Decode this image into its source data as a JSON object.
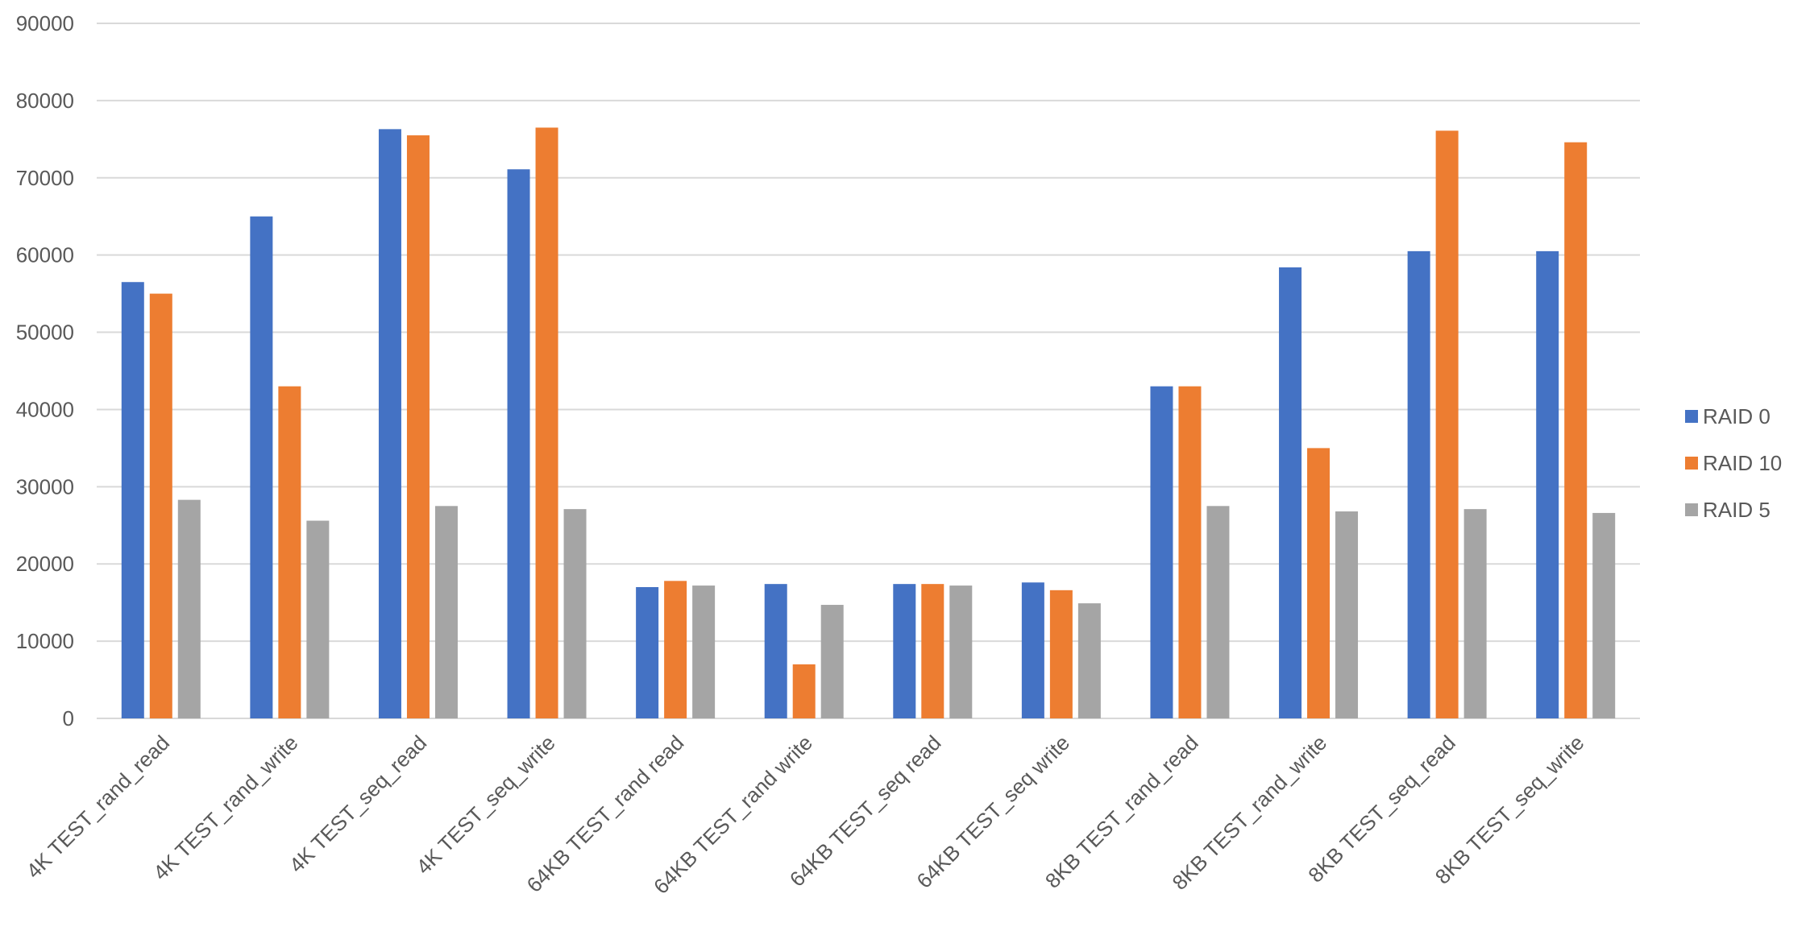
{
  "chart_data": {
    "type": "bar",
    "title": "",
    "xlabel": "",
    "ylabel": "",
    "categories": [
      "4K TEST_rand_read",
      "4K TEST_rand_write",
      "4K TEST_seq_read",
      "4K TEST_seq_write",
      "64KB TEST_rand read",
      "64KB TEST_rand write",
      "64KB TEST_seq read",
      "64KB TEST_seq write",
      "8KB TEST_rand_read",
      "8KB TEST_rand_write",
      "8KB TEST_seq_read",
      "8KB TEST_seq_write"
    ],
    "series": [
      {
        "name": "RAID 0",
        "color": "#4472c4",
        "values": [
          56500,
          65000,
          76300,
          71100,
          17000,
          17400,
          17400,
          17600,
          43000,
          58400,
          60500,
          60500
        ]
      },
      {
        "name": "RAID 10",
        "color": "#ed7d31",
        "values": [
          55000,
          43000,
          75500,
          76500,
          17800,
          7000,
          17400,
          16600,
          43000,
          35000,
          76100,
          74600
        ]
      },
      {
        "name": "RAID 5",
        "color": "#a5a5a5",
        "values": [
          28300,
          25600,
          27500,
          27100,
          17200,
          14700,
          17200,
          14900,
          27500,
          26800,
          27100,
          26600
        ]
      }
    ],
    "ylim": [
      0,
      90000
    ],
    "yticks": [
      0,
      10000,
      20000,
      30000,
      40000,
      50000,
      60000,
      70000,
      80000,
      90000
    ],
    "grid": true,
    "legend_position": "right"
  }
}
